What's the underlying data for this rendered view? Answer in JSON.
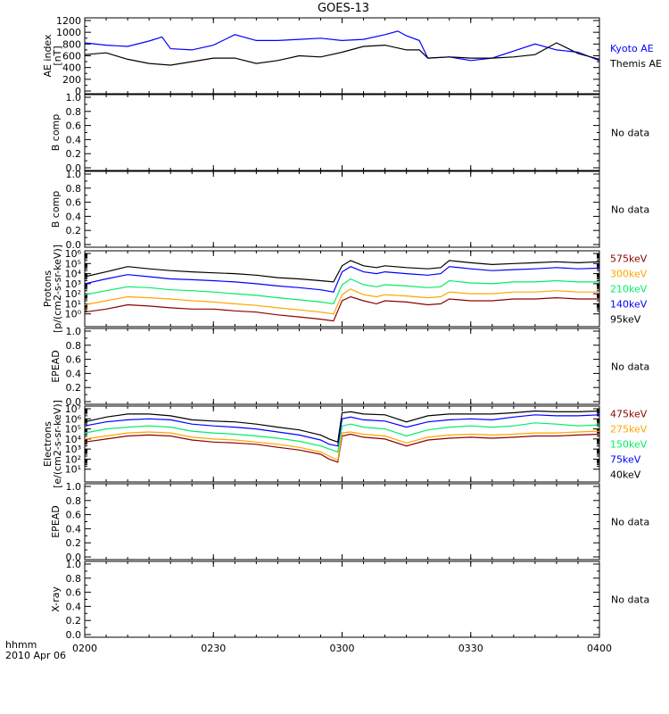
{
  "chart_data": {
    "type": "line",
    "title": "GOES-13",
    "no_data_label": "No data",
    "footer": {
      "hhmm": "hhmm",
      "date": "2010 Apr 06"
    },
    "x": {
      "range": [
        "02:00",
        "04:00"
      ],
      "ticks": [
        "0200",
        "0230",
        "0300",
        "0330",
        "0400"
      ]
    },
    "panels": [
      {
        "id": "ae",
        "ylabel": [
          "AE index",
          "[nT]"
        ],
        "scale": "linear",
        "ylim": [
          0,
          1200
        ],
        "yticks": [
          "0",
          "200",
          "400",
          "600",
          "800",
          "1000",
          "1200"
        ],
        "series": [
          {
            "name": "Kyoto AE",
            "color": "#0000ff",
            "x": [
              "02:00",
              "02:05",
              "02:10",
              "02:15",
              "02:18",
              "02:20",
              "02:25",
              "02:30",
              "02:35",
              "02:40",
              "02:45",
              "02:50",
              "02:55",
              "03:00",
              "03:05",
              "03:10",
              "03:13",
              "03:15",
              "03:18",
              "03:20",
              "03:25",
              "03:30",
              "03:35",
              "03:40",
              "03:45",
              "03:50",
              "03:55",
              "04:00"
            ],
            "y": [
              820,
              780,
              760,
              850,
              920,
              720,
              700,
              780,
              960,
              860,
              860,
              880,
              900,
              860,
              880,
              960,
              1020,
              940,
              860,
              560,
              580,
              520,
              560,
              680,
              800,
              700,
              660,
              520
            ]
          },
          {
            "name": "Themis AE",
            "color": "#000000",
            "x": [
              "02:00",
              "02:05",
              "02:10",
              "02:15",
              "02:20",
              "02:25",
              "02:30",
              "02:35",
              "02:40",
              "02:45",
              "02:50",
              "02:55",
              "03:00",
              "03:05",
              "03:10",
              "03:15",
              "03:18",
              "03:20",
              "03:25",
              "03:30",
              "03:35",
              "03:40",
              "03:45",
              "03:50",
              "03:55",
              "04:00"
            ],
            "y": [
              620,
              650,
              540,
              470,
              440,
              500,
              560,
              560,
              470,
              520,
              600,
              580,
              660,
              760,
              780,
              700,
              700,
              560,
              580,
              560,
              560,
              580,
              620,
              820,
              640,
              540
            ]
          }
        ]
      },
      {
        "id": "b1",
        "ylabel": [
          "B comp"
        ],
        "scale": "linear",
        "ylim": [
          0,
          1
        ],
        "yticks": [
          "0.0",
          "0.2",
          "0.4",
          "0.6",
          "0.8",
          "1.0"
        ],
        "no_data": true
      },
      {
        "id": "b2",
        "ylabel": [
          "B comp"
        ],
        "scale": "linear",
        "ylim": [
          0,
          1
        ],
        "yticks": [
          "0.0",
          "0.2",
          "0.4",
          "0.6",
          "0.8",
          "1.0"
        ],
        "no_data": true
      },
      {
        "id": "protons",
        "ylabel": [
          "Protons",
          "[p/(cm2-s-sr-keV)]"
        ],
        "scale": "log",
        "ylim": [
          0.1,
          1000000
        ],
        "yticks_exp": [
          0,
          1,
          2,
          3,
          4,
          5,
          6
        ],
        "x": [
          "02:00",
          "02:05",
          "02:10",
          "02:15",
          "02:20",
          "02:25",
          "02:30",
          "02:35",
          "02:40",
          "02:45",
          "02:50",
          "02:55",
          "02:58",
          "03:00",
          "03:02",
          "03:05",
          "03:08",
          "03:10",
          "03:15",
          "03:20",
          "03:23",
          "03:25",
          "03:30",
          "03:35",
          "03:40",
          "03:45",
          "03:50",
          "03:55",
          "04:00"
        ],
        "series": [
          {
            "name": "575keV",
            "color": "#8b0000",
            "y": [
              1.5,
              3,
              8,
              6,
              4,
              3,
              3,
              2,
              1.5,
              0.8,
              0.5,
              0.3,
              0.2,
              20,
              50,
              20,
              10,
              20,
              15,
              8,
              10,
              30,
              20,
              20,
              30,
              30,
              40,
              30,
              30
            ]
          },
          {
            "name": "300keV",
            "color": "#ffa500",
            "y": [
              8,
              20,
              50,
              40,
              30,
              20,
              15,
              10,
              7,
              4,
              2.5,
              1.5,
              1,
              80,
              300,
              80,
              50,
              80,
              60,
              40,
              50,
              150,
              100,
              100,
              150,
              150,
              200,
              150,
              150
            ]
          },
          {
            "name": "210keV",
            "color": "#00ee66",
            "y": [
              80,
              200,
              500,
              400,
              250,
              200,
              150,
              100,
              70,
              40,
              25,
              15,
              10,
              800,
              3000,
              800,
              500,
              800,
              600,
              400,
              500,
              2000,
              1200,
              1000,
              1500,
              1500,
              2000,
              1500,
              1500
            ]
          },
          {
            "name": "140keV",
            "color": "#0000ff",
            "y": [
              1000,
              3000,
              8000,
              5000,
              3000,
              2500,
              2000,
              1500,
              1000,
              600,
              400,
              250,
              150,
              15000,
              50000,
              15000,
              10000,
              15000,
              10000,
              7000,
              10000,
              50000,
              30000,
              20000,
              25000,
              30000,
              40000,
              30000,
              35000
            ]
          },
          {
            "name": "95keV",
            "color": "#000000",
            "y": [
              5000,
              15000,
              50000,
              30000,
              20000,
              15000,
              12000,
              10000,
              7000,
              4000,
              3000,
              2000,
              1500,
              60000,
              200000,
              60000,
              40000,
              60000,
              40000,
              30000,
              40000,
              200000,
              120000,
              80000,
              100000,
              120000,
              150000,
              120000,
              150000
            ]
          }
        ]
      },
      {
        "id": "epead1",
        "ylabel": [
          "EPEAD"
        ],
        "scale": "linear",
        "ylim": [
          0,
          1
        ],
        "yticks": [
          "0.0",
          "0.2",
          "0.4",
          "0.6",
          "0.8",
          "1.0"
        ],
        "no_data": true
      },
      {
        "id": "electrons",
        "ylabel": [
          "Electrons",
          "[e/(cm2-s-sr-keV)]"
        ],
        "scale": "log",
        "ylim": [
          1,
          10000000
        ],
        "yticks_exp": [
          1,
          2,
          3,
          4,
          5,
          6,
          7
        ],
        "x": [
          "02:00",
          "02:05",
          "02:10",
          "02:15",
          "02:20",
          "02:25",
          "02:30",
          "02:35",
          "02:40",
          "02:45",
          "02:50",
          "02:55",
          "02:57",
          "02:59",
          "03:00",
          "03:02",
          "03:05",
          "03:10",
          "03:15",
          "03:20",
          "03:25",
          "03:30",
          "03:35",
          "03:40",
          "03:45",
          "03:50",
          "03:55",
          "04:00"
        ],
        "series": [
          {
            "name": "475keV",
            "color": "#8b0000",
            "y": [
              5000,
              10000,
              20000,
              25000,
              20000,
              8000,
              5000,
              4000,
              3000,
              1500,
              800,
              300,
              100,
              50,
              20000,
              30000,
              15000,
              10000,
              2000,
              8000,
              12000,
              15000,
              12000,
              15000,
              20000,
              20000,
              25000,
              30000
            ]
          },
          {
            "name": "275keV",
            "color": "#ffa500",
            "y": [
              10000,
              20000,
              40000,
              50000,
              40000,
              15000,
              10000,
              8000,
              5000,
              3000,
              1500,
              500,
              200,
              80,
              40000,
              50000,
              30000,
              20000,
              4000,
              15000,
              25000,
              30000,
              25000,
              30000,
              40000,
              40000,
              50000,
              60000
            ]
          },
          {
            "name": "150keV",
            "color": "#00ee66",
            "y": [
              40000,
              100000,
              150000,
              200000,
              150000,
              60000,
              40000,
              30000,
              20000,
              12000,
              6000,
              2000,
              1000,
              500,
              200000,
              300000,
              150000,
              100000,
              20000,
              80000,
              150000,
              200000,
              150000,
              200000,
              400000,
              300000,
              200000,
              250000
            ]
          },
          {
            "name": "75keV",
            "color": "#0000ff",
            "y": [
              200000,
              500000,
              800000,
              1000000,
              800000,
              300000,
              200000,
              150000,
              100000,
              50000,
              25000,
              8000,
              3000,
              2000,
              1000000,
              1500000,
              800000,
              600000,
              150000,
              500000,
              800000,
              1000000,
              800000,
              1500000,
              2500000,
              2000000,
              2000000,
              2500000
            ]
          },
          {
            "name": "40keV",
            "color": "#000000",
            "y": [
              500000,
              1500000,
              3000000,
              3000000,
              2000000,
              800000,
              600000,
              500000,
              300000,
              150000,
              80000,
              25000,
              10000,
              5000,
              4000000,
              5000000,
              3000000,
              2500000,
              500000,
              2000000,
              3000000,
              3000000,
              3000000,
              4000000,
              6000000,
              5000000,
              5000000,
              6000000
            ]
          }
        ]
      },
      {
        "id": "epead2",
        "ylabel": [
          "EPEAD"
        ],
        "scale": "linear",
        "ylim": [
          0,
          1
        ],
        "yticks": [
          "0.0",
          "0.2",
          "0.4",
          "0.6",
          "0.8",
          "1.0"
        ],
        "no_data": true
      },
      {
        "id": "xray",
        "ylabel": [
          "X-ray"
        ],
        "scale": "linear",
        "ylim": [
          0,
          1
        ],
        "yticks": [
          "0.0",
          "0.2",
          "0.4",
          "0.6",
          "0.8",
          "1.0"
        ],
        "no_data": true
      }
    ]
  }
}
